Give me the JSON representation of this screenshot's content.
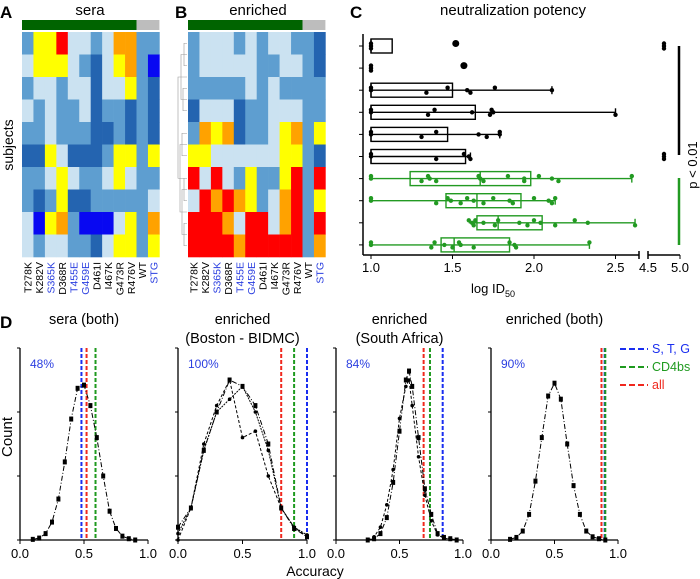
{
  "colors": {
    "L": "#cbe2f1",
    "M": "#5e9ed0",
    "D": "#2464b0",
    "B": "#0808f2",
    "Y": "#ffff00",
    "O": "#ffa200",
    "R": "#ff0000",
    "bar_green": "#006400",
    "bar_grey": "#bdbdbd",
    "box_black": "#000000",
    "box_green": "#229a22",
    "line_blue": "#1a2ef0",
    "line_green": "#1f9a1f",
    "line_red": "#f0281e",
    "pct_blue": "#2a3ee0"
  },
  "panel_labels": [
    "A",
    "B",
    "C",
    "D"
  ],
  "heatmaps": {
    "columns": [
      {
        "label": "T278K",
        "color": "#000000"
      },
      {
        "label": "K282V",
        "color": "#000000"
      },
      {
        "label": "S365K",
        "color": "#2a3ee0"
      },
      {
        "label": "D368R",
        "color": "#000000"
      },
      {
        "label": "T455E",
        "color": "#2a3ee0"
      },
      {
        "label": "G459E",
        "color": "#2a3ee0"
      },
      {
        "label": "D461I",
        "color": "#000000"
      },
      {
        "label": "I467K",
        "color": "#000000"
      },
      {
        "label": "G473R",
        "color": "#000000"
      },
      {
        "label": "R476V",
        "color": "#000000"
      },
      {
        "label": "WT",
        "color": "#000000"
      },
      {
        "label": "STG",
        "color": "#2a3ee0"
      }
    ],
    "row_axis_label": "subjects",
    "sera": {
      "title": "sera",
      "rows": [
        "MYYRLLMLOOMM",
        "LYYYLMDLYOMB",
        "MLLMLLDLLYMD",
        "LMLMMLDMMDMD",
        "MMLMMMDDMDMD",
        "DDYLDDDMYYMY",
        "MMLYLMMLYLMM",
        "MDMYDDMMMMML",
        "LBYOMBBBLYMO",
        "LMLLMMDLYYMY"
      ]
    },
    "enriched": {
      "title": "enriched",
      "dendrogram": true,
      "rows": [
        "MLLLMLMLLMMD",
        "MLLLLLMMLLMD",
        "MMMMMLMLMMMM",
        "DLLLDMMLLLMM",
        "MOYODMMLYOMY",
        "YYLLLLLLYYMD",
        "RLRLMYMMYRMR",
        "LROROYMLORMY",
        "RRROLRRLORMR",
        "RRRRORRRRRMO"
      ]
    }
  },
  "chart_data": [
    {
      "type": "box",
      "panel": "C",
      "title": "neutralization potency",
      "xlabel": "log ID",
      "xlabel_sub": "50",
      "x_axis_broken": true,
      "x_segments": [
        [
          1.0,
          2.66
        ],
        [
          4.5,
          5.0
        ]
      ],
      "xticks": [
        "1.0",
        "1.5",
        "2.0",
        "2.5",
        "4.5",
        "5.0"
      ],
      "xtick_values": [
        1.0,
        1.5,
        2.0,
        2.5,
        4.5,
        5.0
      ],
      "significance": "p < 0.01",
      "rows": [
        {
          "group": "black",
          "q1": 1.0,
          "median": 1.0,
          "q3": 1.13,
          "wmin": 1.0,
          "wmax": 1.0,
          "points": [
            1.0,
            1.0,
            1.0,
            1.52,
            4.75,
            4.75,
            4.75
          ]
        },
        {
          "group": "black",
          "points": [
            1.0,
            1.0,
            1.0,
            1.57
          ]
        },
        {
          "group": "black",
          "q1": 1.0,
          "median": 1.0,
          "q3": 1.5,
          "wmin": 1.0,
          "wmax": 2.11,
          "points": [
            1.0,
            1.0,
            1.34,
            1.47,
            1.59,
            1.61,
            1.76,
            2.11
          ]
        },
        {
          "group": "black",
          "q1": 1.0,
          "median": 1.0,
          "q3": 1.64,
          "wmin": 1.0,
          "wmax": 2.5,
          "points": [
            1.0,
            1.0,
            1.35,
            1.39,
            1.62,
            1.73,
            1.74,
            1.75,
            2.5
          ]
        },
        {
          "group": "black",
          "q1": 1.0,
          "median": 1.0,
          "q3": 1.47,
          "wmin": 1.0,
          "wmax": 1.79,
          "points": [
            1.0,
            1.0,
            1.31,
            1.4,
            1.66,
            1.71,
            1.79,
            1.79
          ]
        },
        {
          "group": "black",
          "q1": 1.0,
          "median": 1.0,
          "q3": 1.58,
          "wmin": 1.0,
          "wmax": 1.61,
          "points": [
            1.0,
            1.0,
            1.4,
            1.57,
            1.6,
            1.61,
            4.75,
            4.75,
            4.75
          ]
        },
        {
          "group": "green",
          "q1": 1.24,
          "median": 1.67,
          "q3": 1.98,
          "wmin": 1.0,
          "wmax": 2.6,
          "points": [
            1.0,
            1.0,
            1.31,
            1.35,
            1.36,
            1.4,
            1.66,
            1.67,
            1.69,
            1.84,
            1.94,
            1.94,
            2.03,
            2.11,
            2.15,
            2.6
          ]
        },
        {
          "group": "green",
          "q1": 1.46,
          "median": 1.65,
          "q3": 1.92,
          "wmin": 1.0,
          "wmax": 2.13,
          "points": [
            1.0,
            1.0,
            1.4,
            1.47,
            1.49,
            1.55,
            1.59,
            1.63,
            1.69,
            1.75,
            1.85,
            1.87,
            2.0,
            2.09,
            2.11,
            2.13
          ]
        },
        {
          "group": "green",
          "q1": 1.65,
          "median": 1.78,
          "q3": 2.05,
          "wmin": 1.6,
          "wmax": 2.62,
          "points": [
            1.6,
            1.62,
            1.63,
            1.64,
            1.69,
            1.76,
            1.78,
            1.91,
            1.96,
            2.0,
            2.04,
            2.13,
            2.25,
            2.33,
            2.62
          ]
        },
        {
          "group": "green",
          "q1": 1.43,
          "median": 1.51,
          "q3": 1.85,
          "wmin": 1.0,
          "wmax": 2.34,
          "points": [
            1.0,
            1.0,
            1.37,
            1.39,
            1.45,
            1.5,
            1.54,
            1.55,
            1.63,
            1.85,
            1.88,
            1.89,
            2.34
          ]
        }
      ]
    },
    {
      "type": "line",
      "panel": "D",
      "ylabel": "Count",
      "xlabel": "Accuracy",
      "xlim": [
        0,
        1
      ],
      "xticks": [
        "0.0",
        "0.5",
        "1.0"
      ],
      "ylim": [
        0,
        3
      ],
      "legend": {
        "placement": "top-right",
        "entries": [
          {
            "label": "S, T, G",
            "color": "#1a2ef0"
          },
          {
            "label": "CD4bs",
            "color": "#1f9a1f"
          },
          {
            "label": "all",
            "color": "#f0281e"
          }
        ]
      },
      "subplots": [
        {
          "title": [
            "sera (both)"
          ],
          "percent": "48%",
          "vlines": {
            "blue": 0.48,
            "red": 0.52,
            "green": 0.59
          },
          "series": [
            {
              "x": [
                0.1,
                0.15,
                0.2,
                0.25,
                0.3,
                0.35,
                0.4,
                0.45,
                0.5,
                0.55,
                0.6,
                0.65,
                0.7,
                0.75,
                0.8,
                0.85,
                0.9
              ],
              "y": [
                0.01,
                0.03,
                0.1,
                0.28,
                0.64,
                1.22,
                1.89,
                2.37,
                2.42,
                2.1,
                1.6,
                1.0,
                0.45,
                0.18,
                0.06,
                0.02,
                0.0
              ]
            }
          ]
        },
        {
          "title": [
            "enriched",
            "(Boston - BIDMC)"
          ],
          "percent": "100%",
          "vlines": {
            "red": 0.8,
            "green": 0.9,
            "blue": 1.0
          },
          "series": [
            {
              "x": [
                0,
                0.1,
                0.2,
                0.3,
                0.4,
                0.5,
                0.6,
                0.7,
                0.8,
                0.9,
                1.0
              ],
              "y": [
                0.2,
                0.5,
                1.4,
                2.0,
                2.5,
                2.4,
                2.1,
                1.5,
                0.5,
                0.18,
                0.05
              ]
            },
            {
              "x": [
                0,
                0.1,
                0.2,
                0.3,
                0.4,
                0.5,
                0.6,
                0.7,
                0.8,
                0.9,
                1.0
              ],
              "y": [
                0.0,
                0.5,
                1.5,
                2.1,
                2.5,
                1.6,
                1.7,
                1.0,
                0.5,
                0.2,
                0.05
              ]
            },
            {
              "x": [
                0,
                0.1,
                0.2,
                0.3,
                0.4,
                0.5,
                0.6,
                0.7,
                0.8,
                0.9,
                1.0
              ],
              "y": [
                0.1,
                0.5,
                1.4,
                2.0,
                2.2,
                2.4,
                2.0,
                1.4,
                0.5,
                0.2,
                0.08
              ]
            }
          ]
        },
        {
          "title": [
            "enriched",
            "(South Africa)"
          ],
          "percent": "84%",
          "vlines": {
            "red": 0.69,
            "green": 0.74,
            "blue": 0.84
          },
          "series": [
            {
              "x": [
                0.25,
                0.3,
                0.35,
                0.4,
                0.45,
                0.5,
                0.55,
                0.575,
                0.6,
                0.65,
                0.7,
                0.75,
                0.8,
                0.85,
                0.9,
                0.95
              ],
              "y": [
                0.0,
                0.02,
                0.1,
                0.35,
                0.9,
                1.7,
                2.5,
                2.64,
                2.4,
                1.6,
                0.8,
                0.4,
                0.1,
                0.04,
                0.02,
                0.0
              ]
            },
            {
              "x": [
                0.25,
                0.3,
                0.35,
                0.4,
                0.45,
                0.5,
                0.55,
                0.575,
                0.6,
                0.65,
                0.7,
                0.75,
                0.8,
                0.85,
                0.9,
                0.95
              ],
              "y": [
                0.0,
                0.05,
                0.2,
                0.55,
                1.1,
                1.9,
                2.4,
                2.5,
                2.1,
                1.3,
                0.7,
                0.3,
                0.08,
                0.03,
                0.01,
                0.0
              ]
            }
          ]
        },
        {
          "title": [
            "enriched (both)"
          ],
          "percent": "90%",
          "vlines": {
            "red": 0.87,
            "blue": 0.895,
            "green": 0.9
          },
          "series": [
            {
              "x": [
                0.15,
                0.2,
                0.25,
                0.3,
                0.35,
                0.4,
                0.45,
                0.5,
                0.55,
                0.6,
                0.65,
                0.7,
                0.75,
                0.8,
                0.85,
                0.9
              ],
              "y": [
                0.01,
                0.04,
                0.14,
                0.4,
                0.92,
                1.6,
                2.25,
                2.45,
                2.2,
                1.5,
                0.85,
                0.4,
                0.14,
                0.05,
                0.02,
                0.0
              ]
            }
          ]
        }
      ]
    }
  ]
}
